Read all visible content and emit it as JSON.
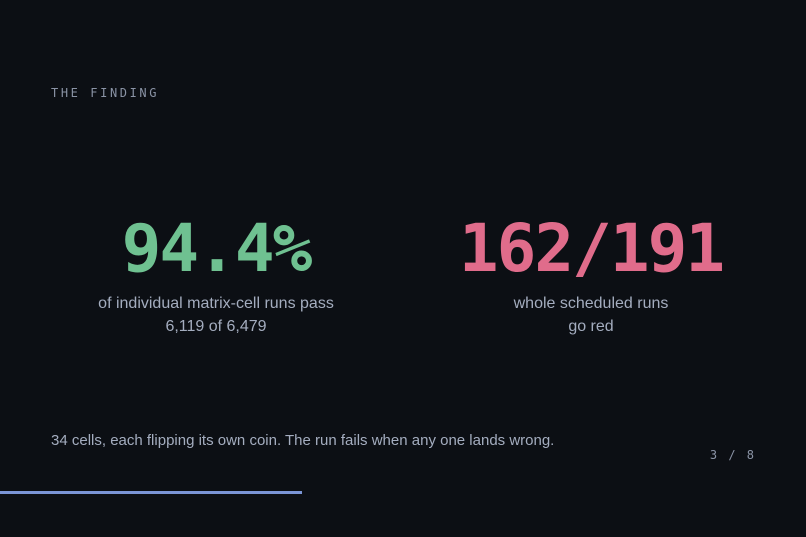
{
  "slide": {
    "eyebrow": "THE FINDING",
    "left_stat": {
      "value": "94.4%",
      "caption_line1": "of individual matrix-cell runs pass",
      "caption_line2": "6,119 of 6,479",
      "color": "#6fc191"
    },
    "right_stat": {
      "value": "162/191",
      "caption_line1": "whole scheduled runs",
      "caption_line2": "go red",
      "color": "#e06c8b"
    },
    "footer_note": "34 cells, each flipping its own coin. The run fails when any one lands wrong.",
    "page_indicator": "3 / 8",
    "progress": {
      "current": 3,
      "total": 8,
      "fraction": 0.375,
      "color": "#7b95d6"
    }
  }
}
